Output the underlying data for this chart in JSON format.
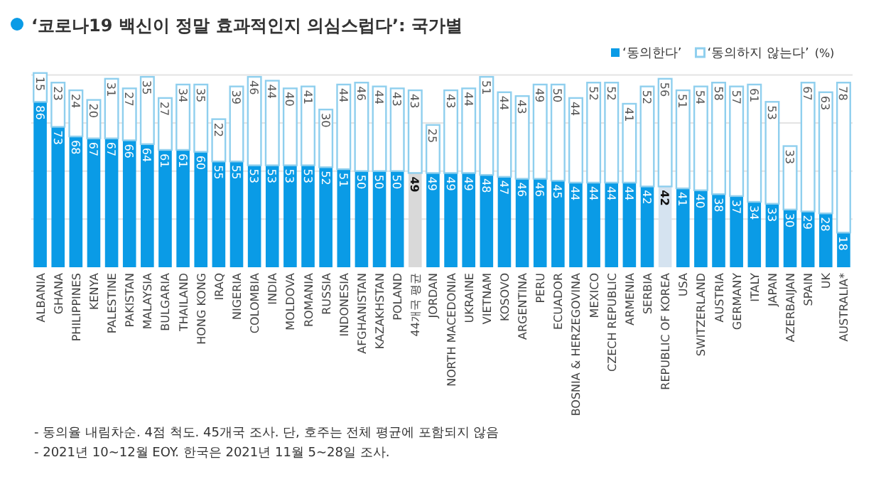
{
  "chart_data": {
    "type": "bar",
    "stacked": true,
    "title": "‘코로나19 백신이 정말 효과적인지 의심스럽다’: 국가별",
    "legend_title": "(%)",
    "categories": [
      "ALBANIA",
      "GHANA",
      "PHILIPPINES",
      "KENYA",
      "PALESTINE",
      "PAKISTAN",
      "MALAYSIA",
      "BULGARIA",
      "THAILAND",
      "HONG KONG",
      "IRAQ",
      "NIGERIA",
      "COLOMBIA",
      "INDIA",
      "MOLDOVA",
      "ROMANIA",
      "RUSSIA",
      "INDONESIA",
      "AFGHANISTAN",
      "KAZAKHSTAN",
      "POLAND",
      "44개국 평균",
      "JORDAN",
      "NORTH MACEDONIA",
      "UKRAINE",
      "VIETNAM",
      "KOSOVO",
      "ARGENTINA",
      "PERU",
      "ECUADOR",
      "BOSNIA & HERZEGOVINA",
      "MEXICO",
      "CZECH REPUBLIC",
      "ARMENIA",
      "SERBIA",
      "REPUBLIC OF KOREA",
      "USA",
      "SWITZERLAND",
      "AUSTRIA",
      "GERMANY",
      "ITALY",
      "JAPAN",
      "AZERBAIJAN",
      "SPAIN",
      "UK",
      "AUSTRALIA*"
    ],
    "series": [
      {
        "name": "‘동의한다’",
        "color": "#0a9be6",
        "colors": [
          "#0a9be6",
          "#0a9be6",
          "#0a9be6",
          "#0a9be6",
          "#0a9be6",
          "#0a9be6",
          "#0a9be6",
          "#0a9be6",
          "#0a9be6",
          "#0a9be6",
          "#0a9be6",
          "#0a9be6",
          "#0a9be6",
          "#0a9be6",
          "#0a9be6",
          "#0a9be6",
          "#0a9be6",
          "#0a9be6",
          "#0a9be6",
          "#0a9be6",
          "#0a9be6",
          "#d9d9d9",
          "#0a9be6",
          "#0a9be6",
          "#0a9be6",
          "#0a9be6",
          "#0a9be6",
          "#0a9be6",
          "#0a9be6",
          "#0a9be6",
          "#0a9be6",
          "#0a9be6",
          "#0a9be6",
          "#0a9be6",
          "#0a9be6",
          "#d5e3f0",
          "#0a9be6",
          "#0a9be6",
          "#0a9be6",
          "#0a9be6",
          "#0a9be6",
          "#0a9be6",
          "#0a9be6",
          "#0a9be6",
          "#0a9be6",
          "#0a9be6"
        ],
        "values": [
          86,
          73,
          68,
          67,
          67,
          66,
          64,
          61,
          61,
          60,
          55,
          55,
          53,
          53,
          53,
          53,
          52,
          51,
          50,
          50,
          50,
          49,
          49,
          49,
          49,
          48,
          47,
          46,
          46,
          45,
          44,
          44,
          44,
          44,
          42,
          42,
          41,
          40,
          38,
          37,
          34,
          33,
          30,
          29,
          28,
          18
        ]
      },
      {
        "name": "‘동의하지 않는다’",
        "color": "#8fcfee",
        "values": [
          15,
          23,
          24,
          20,
          31,
          27,
          35,
          27,
          34,
          35,
          22,
          39,
          46,
          44,
          40,
          41,
          30,
          44,
          46,
          44,
          43,
          43,
          25,
          43,
          44,
          51,
          44,
          43,
          49,
          50,
          44,
          52,
          52,
          41,
          52,
          56,
          51,
          54,
          58,
          57,
          61,
          53,
          33,
          67,
          63,
          78
        ]
      }
    ],
    "ylim": [
      0,
      102
    ],
    "yticks": [
      {
        "value": 25,
        "label": null
      },
      {
        "value": 50,
        "label": null
      },
      {
        "value": 75,
        "label": null
      },
      {
        "value": 100,
        "label": null
      }
    ],
    "grid": "y",
    "tick_labels": "x",
    "data_labels": true,
    "legend": "top right",
    "annotations": [
      "- 동의율 내림차순. 4점 척도. 45개국 조사. 단, 호주는 전체 평균에 포함되지 않음",
      "- 2021년 10~12월 EOY. 한국은 2021년 11월 5~28일 조사."
    ]
  }
}
